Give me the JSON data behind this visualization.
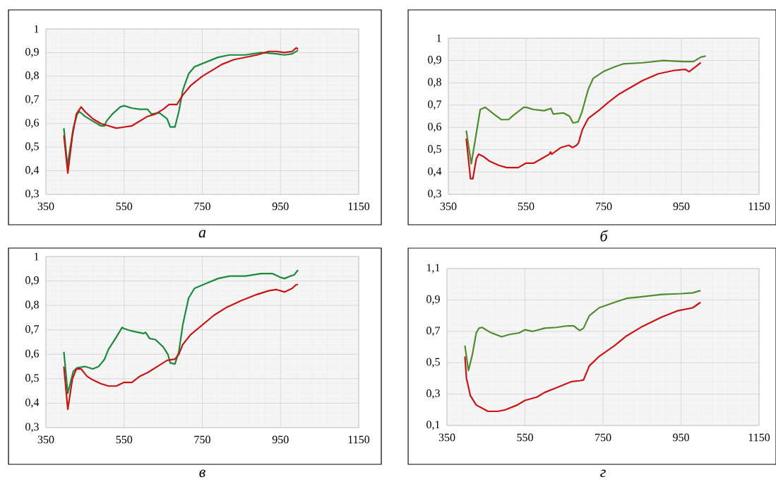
{
  "chart_data": [
    {
      "type": "line",
      "title": "а",
      "xlim": [
        350,
        1150
      ],
      "ylim": [
        0.3,
        1
      ],
      "xticks": [
        350,
        550,
        750,
        950,
        1150
      ],
      "yticks": [
        {
          "value": 0.3,
          "label": "0,3"
        },
        {
          "value": 0.4,
          "label": "0,4"
        },
        {
          "value": 0.5,
          "label": "0,5"
        },
        {
          "value": 0.6,
          "label": "0,6"
        },
        {
          "value": 0.7,
          "label": "0,7"
        },
        {
          "value": 0.8,
          "label": "0,8"
        },
        {
          "value": 0.9,
          "label": "0,9"
        },
        1
      ],
      "grid": true,
      "series": [
        {
          "color": "#1a8a3c",
          "x": [
            396,
            405,
            420,
            430,
            436,
            450,
            470,
            490,
            500,
            505,
            520,
            540,
            550,
            570,
            590,
            610,
            620,
            640,
            660,
            668,
            680,
            690,
            700,
            715,
            730,
            760,
            790,
            820,
            860,
            900,
            940,
            960,
            980,
            995
          ],
          "values": [
            0.58,
            0.42,
            0.58,
            0.64,
            0.65,
            0.63,
            0.61,
            0.59,
            0.59,
            0.61,
            0.64,
            0.67,
            0.675,
            0.665,
            0.66,
            0.66,
            0.64,
            0.645,
            0.62,
            0.585,
            0.585,
            0.65,
            0.74,
            0.81,
            0.84,
            0.86,
            0.88,
            0.89,
            0.89,
            0.9,
            0.895,
            0.89,
            0.895,
            0.91
          ]
        },
        {
          "color": "#c81414",
          "x": [
            396,
            406,
            418,
            428,
            440,
            450,
            470,
            490,
            510,
            530,
            550,
            570,
            590,
            610,
            630,
            650,
            665,
            685,
            700,
            720,
            750,
            780,
            800,
            830,
            860,
            890,
            920,
            940,
            960,
            980,
            990,
            995
          ],
          "values": [
            0.55,
            0.39,
            0.55,
            0.64,
            0.67,
            0.65,
            0.62,
            0.6,
            0.59,
            0.58,
            0.585,
            0.59,
            0.61,
            0.63,
            0.64,
            0.66,
            0.68,
            0.68,
            0.72,
            0.76,
            0.8,
            0.83,
            0.85,
            0.87,
            0.88,
            0.89,
            0.905,
            0.905,
            0.9,
            0.905,
            0.92,
            0.915
          ]
        }
      ]
    },
    {
      "type": "line",
      "title": "б",
      "xlim": [
        350,
        1150
      ],
      "ylim": [
        0.3,
        1
      ],
      "xticks": [
        350,
        550,
        750,
        950,
        1150
      ],
      "yticks": [
        {
          "value": 0.3,
          "label": "0,3"
        },
        {
          "value": 0.4,
          "label": "0,4"
        },
        {
          "value": 0.5,
          "label": "0,5"
        },
        {
          "value": 0.6,
          "label": "0,6"
        },
        {
          "value": 0.7,
          "label": "0,7"
        },
        {
          "value": 0.8,
          "label": "0,8"
        },
        {
          "value": 0.9,
          "label": "0,9"
        },
        1
      ],
      "grid": true,
      "series": [
        {
          "color": "#4e8c2e",
          "x": [
            396,
            409,
            432,
            445,
            467,
            486,
            505,
            518,
            544,
            550,
            570,
            596,
            614,
            620,
            646,
            662,
            671,
            684,
            694,
            710,
            723,
            749,
            776,
            801,
            852,
            903,
            955,
            981,
            1000,
            1013
          ],
          "values": [
            0.586,
            0.437,
            0.68,
            0.69,
            0.66,
            0.635,
            0.635,
            0.655,
            0.69,
            0.69,
            0.68,
            0.675,
            0.685,
            0.66,
            0.665,
            0.65,
            0.62,
            0.625,
            0.67,
            0.77,
            0.82,
            0.85,
            0.87,
            0.885,
            0.89,
            0.9,
            0.895,
            0.895,
            0.915,
            0.92
          ]
        },
        {
          "color": "#c81414",
          "x": [
            396,
            407,
            413,
            422,
            428,
            440,
            455,
            480,
            500,
            530,
            550,
            570,
            590,
            610,
            613,
            616,
            640,
            660,
            670,
            680,
            685,
            695,
            710,
            740,
            760,
            790,
            820,
            850,
            890,
            930,
            960,
            970,
            985,
            1000
          ],
          "values": [
            0.55,
            0.37,
            0.37,
            0.46,
            0.48,
            0.47,
            0.45,
            0.43,
            0.42,
            0.42,
            0.44,
            0.44,
            0.46,
            0.48,
            0.49,
            0.48,
            0.51,
            0.52,
            0.51,
            0.52,
            0.53,
            0.59,
            0.64,
            0.68,
            0.71,
            0.75,
            0.78,
            0.81,
            0.84,
            0.855,
            0.86,
            0.85,
            0.87,
            0.89
          ]
        }
      ]
    },
    {
      "type": "line",
      "title": "в",
      "xlim": [
        350,
        1150
      ],
      "ylim": [
        0.3,
        1
      ],
      "xticks": [
        350,
        550,
        750,
        950,
        1150
      ],
      "yticks": [
        {
          "value": 0.3,
          "label": "0,3"
        },
        {
          "value": 0.4,
          "label": "0,4"
        },
        {
          "value": 0.5,
          "label": "0,5"
        },
        {
          "value": 0.6,
          "label": "0,6"
        },
        {
          "value": 0.7,
          "label": "0,7"
        },
        {
          "value": 0.8,
          "label": "0,8"
        },
        {
          "value": 0.9,
          "label": "0,9"
        },
        1
      ],
      "grid": true,
      "series": [
        {
          "color": "#1a8a3c",
          "x": [
            396,
            406,
            420,
            430,
            450,
            470,
            485,
            500,
            510,
            530,
            545,
            550,
            570,
            600,
            605,
            615,
            630,
            650,
            662,
            668,
            680,
            690,
            700,
            715,
            730,
            760,
            790,
            820,
            860,
            900,
            930,
            950,
            960,
            975,
            985,
            995
          ],
          "values": [
            0.61,
            0.44,
            0.53,
            0.545,
            0.55,
            0.54,
            0.55,
            0.58,
            0.62,
            0.67,
            0.71,
            0.705,
            0.695,
            0.685,
            0.69,
            0.665,
            0.66,
            0.63,
            0.6,
            0.565,
            0.56,
            0.61,
            0.72,
            0.83,
            0.87,
            0.89,
            0.91,
            0.92,
            0.92,
            0.93,
            0.93,
            0.915,
            0.91,
            0.92,
            0.925,
            0.945
          ]
        },
        {
          "color": "#c81414",
          "x": [
            396,
            406,
            418,
            428,
            440,
            455,
            470,
            490,
            510,
            530,
            550,
            570,
            590,
            610,
            625,
            640,
            660,
            680,
            690,
            700,
            720,
            750,
            780,
            810,
            850,
            890,
            920,
            940,
            960,
            980,
            990,
            995
          ],
          "values": [
            0.55,
            0.375,
            0.5,
            0.54,
            0.54,
            0.51,
            0.495,
            0.48,
            0.47,
            0.47,
            0.485,
            0.485,
            0.51,
            0.525,
            0.54,
            0.555,
            0.575,
            0.58,
            0.6,
            0.64,
            0.68,
            0.72,
            0.76,
            0.79,
            0.82,
            0.845,
            0.86,
            0.865,
            0.855,
            0.87,
            0.885,
            0.885
          ]
        }
      ]
    },
    {
      "type": "line",
      "title": "г",
      "xlim": [
        350,
        1150
      ],
      "ylim": [
        0.1,
        1.1
      ],
      "xticks": [
        350,
        550,
        750,
        950,
        1150
      ],
      "yticks": [
        {
          "value": 0.1,
          "label": "0,1"
        },
        {
          "value": 0.3,
          "label": "0,3"
        },
        {
          "value": 0.5,
          "label": "0,5"
        },
        {
          "value": 0.7,
          "label": "0,7"
        },
        {
          "value": 0.9,
          "label": "0,9"
        },
        {
          "value": 1.1,
          "label": "1,1"
        }
      ],
      "grid": true,
      "series": [
        {
          "color": "#4e8c2e",
          "x": [
            396,
            405,
            415,
            425,
            432,
            440,
            460,
            490,
            510,
            535,
            550,
            570,
            600,
            630,
            660,
            675,
            690,
            700,
            715,
            740,
            780,
            810,
            850,
            900,
            950,
            980,
            1000
          ],
          "values": [
            0.61,
            0.45,
            0.55,
            0.69,
            0.72,
            0.725,
            0.695,
            0.665,
            0.68,
            0.69,
            0.71,
            0.7,
            0.72,
            0.725,
            0.735,
            0.735,
            0.705,
            0.72,
            0.8,
            0.85,
            0.885,
            0.91,
            0.92,
            0.935,
            0.94,
            0.945,
            0.96
          ]
        },
        {
          "color": "#c81414",
          "x": [
            396,
            400,
            410,
            425,
            440,
            455,
            480,
            500,
            530,
            550,
            580,
            600,
            630,
            650,
            670,
            690,
            700,
            715,
            740,
            780,
            810,
            850,
            900,
            940,
            960,
            980,
            1000
          ],
          "values": [
            0.54,
            0.4,
            0.29,
            0.23,
            0.21,
            0.19,
            0.19,
            0.2,
            0.23,
            0.26,
            0.28,
            0.31,
            0.34,
            0.36,
            0.38,
            0.385,
            0.39,
            0.48,
            0.54,
            0.61,
            0.67,
            0.73,
            0.79,
            0.83,
            0.84,
            0.85,
            0.885
          ]
        }
      ]
    }
  ]
}
